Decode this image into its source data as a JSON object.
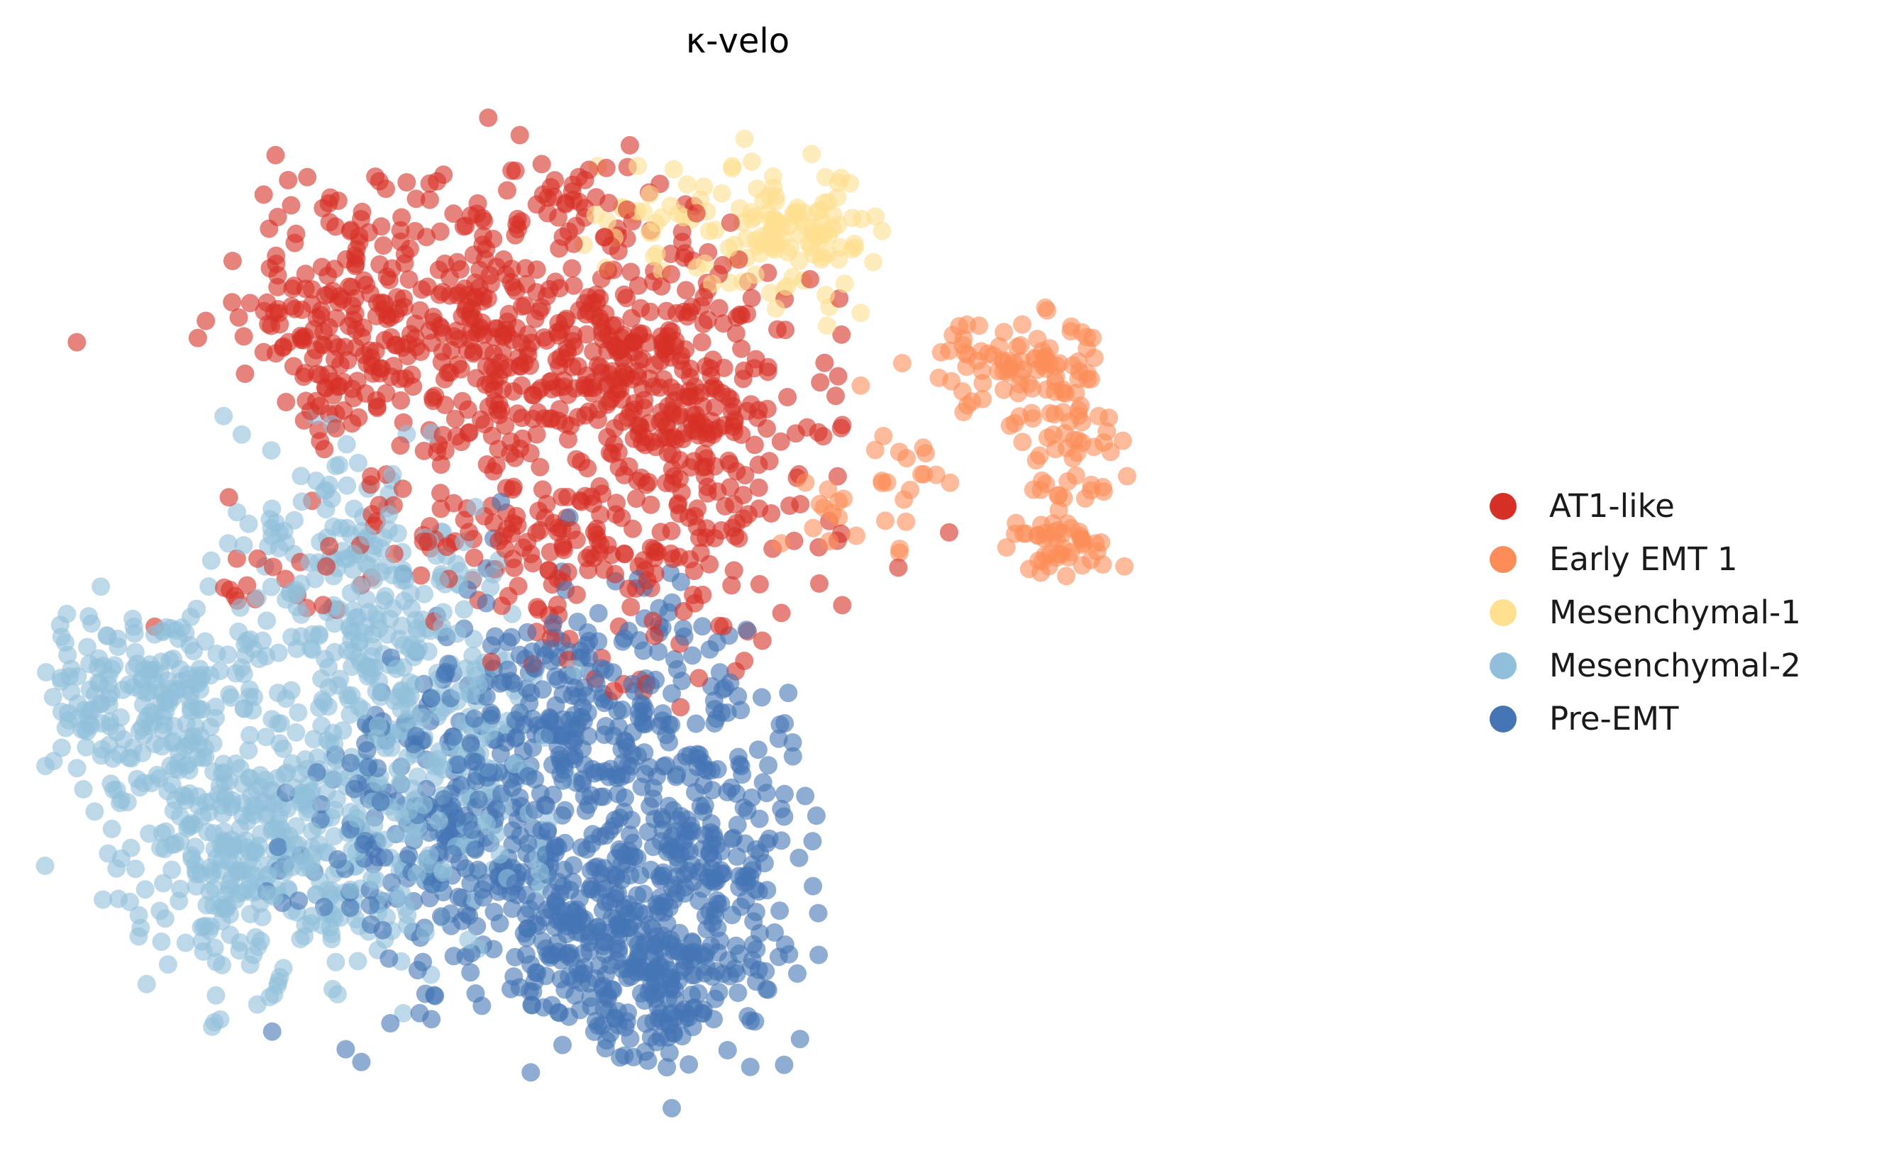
{
  "chart_data": {
    "type": "scatter",
    "title": "κ-velo",
    "xlabel": "",
    "ylabel": "",
    "axes_visible": false,
    "grid": false,
    "legend_position": "right",
    "point_alpha": 0.6,
    "xlim": [
      0,
      100
    ],
    "ylim": [
      0,
      100
    ],
    "series": [
      {
        "name": "AT1-like",
        "color": "#d73027",
        "clusters": [
          {
            "cx": 24,
            "cy": 78,
            "sx": 5.5,
            "sy": 6.5,
            "n": 230
          },
          {
            "cx": 36,
            "cy": 75,
            "sx": 7,
            "sy": 8,
            "n": 360
          },
          {
            "cx": 46,
            "cy": 70,
            "sx": 5,
            "sy": 7,
            "n": 220
          },
          {
            "cx": 38,
            "cy": 56,
            "sx": 8,
            "sy": 4,
            "n": 170
          },
          {
            "cx": 39,
            "cy": 90,
            "sx": 2,
            "sy": 1.2,
            "n": 18
          },
          {
            "cx": 16,
            "cy": 52,
            "sx": 3,
            "sy": 2,
            "n": 14
          },
          {
            "cx": 44,
            "cy": 45,
            "sx": 5,
            "sy": 3,
            "n": 24
          }
        ]
      },
      {
        "name": "Early EMT 1",
        "color": "#fc8d59",
        "clusters": [
          {
            "cx": 70,
            "cy": 73,
            "sx": 3,
            "sy": 3,
            "n": 90
          },
          {
            "cx": 74,
            "cy": 65,
            "sx": 1.5,
            "sy": 4,
            "n": 45
          },
          {
            "cx": 73,
            "cy": 56,
            "sx": 2.2,
            "sy": 1.5,
            "n": 45
          },
          {
            "cx": 62,
            "cy": 63,
            "sx": 3,
            "sy": 4,
            "n": 22
          },
          {
            "cx": 57,
            "cy": 58,
            "sx": 2,
            "sy": 2,
            "n": 10
          }
        ]
      },
      {
        "name": "Mesenchymal-1",
        "color": "#fee090",
        "clusters": [
          {
            "cx": 53,
            "cy": 86,
            "sx": 3.5,
            "sy": 3,
            "n": 110
          },
          {
            "cx": 45,
            "cy": 87,
            "sx": 3,
            "sy": 2.5,
            "n": 30
          }
        ]
      },
      {
        "name": "Mesenchymal-2",
        "color": "#91bfdb",
        "clusters": [
          {
            "cx": 8,
            "cy": 41,
            "sx": 5,
            "sy": 4.5,
            "n": 230
          },
          {
            "cx": 15,
            "cy": 26,
            "sx": 5,
            "sy": 6,
            "n": 330
          },
          {
            "cx": 24,
            "cy": 46,
            "sx": 5,
            "sy": 7,
            "n": 240
          },
          {
            "cx": 28,
            "cy": 31,
            "sx": 4.5,
            "sy": 7,
            "n": 160
          },
          {
            "cx": 21,
            "cy": 58,
            "sx": 3,
            "sy": 5,
            "n": 50
          }
        ]
      },
      {
        "name": "Pre-EMT",
        "color": "#4575b4",
        "clusters": [
          {
            "cx": 30,
            "cy": 28,
            "sx": 5.5,
            "sy": 8,
            "n": 300
          },
          {
            "cx": 41,
            "cy": 20,
            "sx": 5,
            "sy": 6,
            "n": 260
          },
          {
            "cx": 39,
            "cy": 40,
            "sx": 6,
            "sy": 6,
            "n": 250
          },
          {
            "cx": 44,
            "cy": 13,
            "sx": 3.5,
            "sy": 3,
            "n": 110
          },
          {
            "cx": 48,
            "cy": 27,
            "sx": 4,
            "sy": 8,
            "n": 150
          }
        ]
      }
    ]
  }
}
